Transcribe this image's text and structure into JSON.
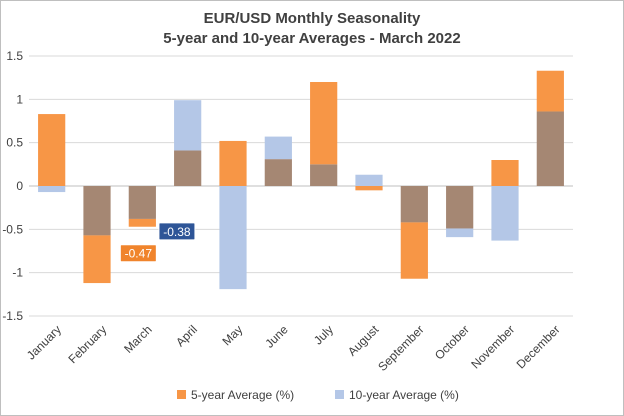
{
  "chart_data": {
    "type": "bar",
    "title": "EUR/USD Monthly Seasonality",
    "subtitle": "5-year and 10-year Averages - March 2022",
    "xlabel": "",
    "ylabel": "",
    "ylim": [
      -1.5,
      1.5
    ],
    "yticks": [
      1.5,
      1,
      0.5,
      0,
      -0.5,
      -1,
      -1.5
    ],
    "ytick_labels": [
      "1.5",
      "1",
      "0.5",
      "0",
      "-0.5",
      "-1",
      "-1.5"
    ],
    "grid": true,
    "legend_position": "bottom",
    "categories": [
      "January",
      "February",
      "March",
      "April",
      "May",
      "June",
      "July",
      "August",
      "September",
      "October",
      "November",
      "December"
    ],
    "series": [
      {
        "name": "5-year Average (%)",
        "color": "#f79646",
        "values": [
          0.83,
          -1.12,
          -0.47,
          0.41,
          0.52,
          0.31,
          1.2,
          -0.05,
          -1.07,
          -0.49,
          0.3,
          1.33
        ]
      },
      {
        "name": "10-year Average (%)",
        "color": "#b4c7e7",
        "values": [
          -0.07,
          -0.57,
          -0.38,
          0.99,
          -1.19,
          0.57,
          0.25,
          0.13,
          -0.42,
          -0.59,
          -0.63,
          0.86
        ]
      }
    ],
    "overlap_color": "#a58773",
    "annotations": [
      {
        "label": "-0.38",
        "series": "10-year Average (%)",
        "category": "March",
        "bg": "#2e5597"
      },
      {
        "label": "-0.47",
        "series": "5-year Average (%)",
        "category": "March",
        "bg": "#f0842c"
      }
    ]
  }
}
